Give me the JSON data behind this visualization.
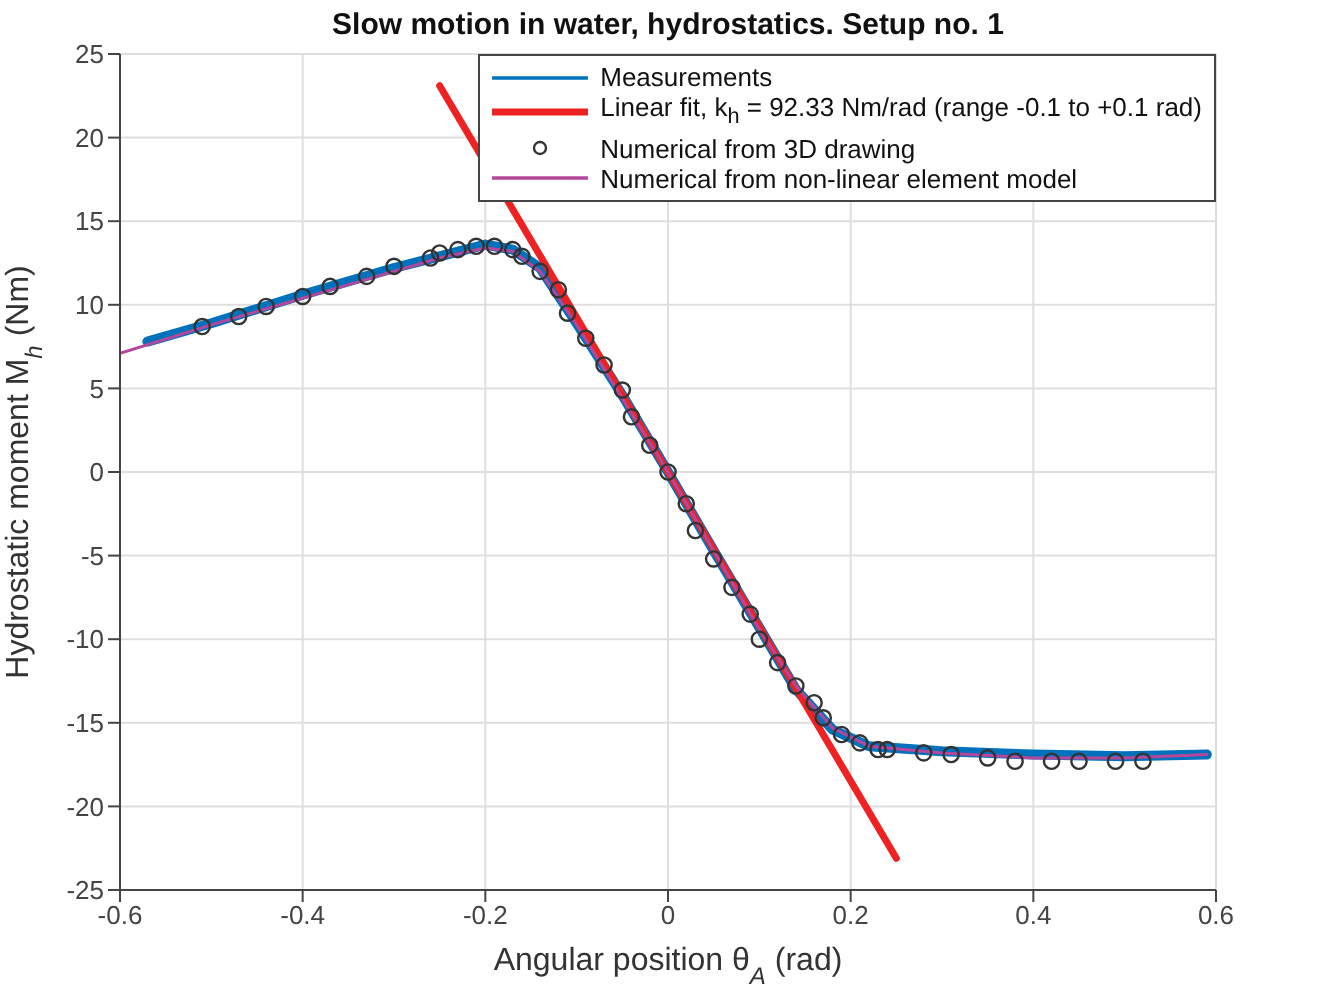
{
  "chart_data": {
    "type": "line",
    "title": "Slow motion in water, hydrostatics. Setup no. 1",
    "xlabel": "Angular position  θ$_{A}$  (rad)",
    "ylabel": "Hydrostatic moment  M$_{h}$  (Nm)",
    "xlim": [
      -0.6,
      0.6
    ],
    "xticks": [
      -0.6,
      -0.4,
      -0.2,
      0,
      0.2,
      0.4,
      0.6
    ],
    "ylim": [
      -25,
      25
    ],
    "yticks": [
      -25,
      -20,
      -15,
      -10,
      -5,
      0,
      5,
      10,
      15,
      20,
      25
    ],
    "grid": true,
    "legend": "top right",
    "series": [
      {
        "name": "Measurements",
        "type": "line",
        "marker": "none",
        "color": "#0072bd",
        "x": [
          -0.57,
          -0.5,
          -0.4,
          -0.3,
          -0.25,
          -0.2,
          -0.17,
          -0.14,
          -0.1,
          -0.05,
          0,
          0.05,
          0.1,
          0.14,
          0.18,
          0.22,
          0.3,
          0.4,
          0.5,
          0.59
        ],
        "values": [
          7.8,
          8.9,
          10.6,
          12.2,
          12.9,
          13.6,
          13.3,
          12.2,
          8.9,
          4.6,
          0,
          -4.7,
          -9.3,
          -13.0,
          -15.4,
          -16.4,
          -16.7,
          -16.9,
          -17.0,
          -16.9
        ]
      },
      {
        "name": "Linear fit, k$_{h}$ = 92.33 Nm/rad (range -0.1 to +0.1 rad)",
        "type": "line",
        "marker": "none",
        "color": "#ee2222",
        "x": [
          -0.25,
          0.25
        ],
        "values": [
          23.1,
          -23.1
        ]
      },
      {
        "name": "Numerical from 3D drawing",
        "type": "scatter",
        "marker": "circle",
        "color": "#333333",
        "x": [
          -0.51,
          -0.47,
          -0.44,
          -0.4,
          -0.37,
          -0.33,
          -0.3,
          -0.26,
          -0.25,
          -0.23,
          -0.21,
          -0.19,
          -0.17,
          -0.16,
          -0.14,
          -0.12,
          -0.11,
          -0.09,
          -0.07,
          -0.05,
          -0.04,
          -0.02,
          0,
          0.02,
          0.03,
          0.05,
          0.07,
          0.09,
          0.1,
          0.12,
          0.14,
          0.16,
          0.17,
          0.19,
          0.21,
          0.23,
          0.24,
          0.28,
          0.31,
          0.35,
          0.38,
          0.42,
          0.45,
          0.49,
          0.52
        ],
        "values": [
          8.7,
          9.3,
          9.9,
          10.5,
          11.1,
          11.7,
          12.3,
          12.8,
          13.1,
          13.3,
          13.5,
          13.5,
          13.3,
          12.9,
          12.0,
          10.9,
          9.5,
          8.0,
          6.4,
          4.9,
          3.3,
          1.6,
          0,
          -1.9,
          -3.5,
          -5.2,
          -6.9,
          -8.5,
          -10.0,
          -11.4,
          -12.8,
          -13.8,
          -14.7,
          -15.7,
          -16.2,
          -16.6,
          -16.6,
          -16.8,
          -16.9,
          -17.1,
          -17.3,
          -17.3,
          -17.3,
          -17.3,
          -17.3
        ]
      },
      {
        "name": "Numerical from non-linear element model",
        "type": "line",
        "marker": "none",
        "color": "#b5479b",
        "x": [
          -0.6,
          -0.5,
          -0.4,
          -0.3,
          -0.25,
          -0.2,
          -0.17,
          -0.14,
          -0.1,
          0,
          0.1,
          0.14,
          0.18,
          0.22,
          0.3,
          0.4,
          0.5,
          0.59
        ],
        "values": [
          7.1,
          8.8,
          10.4,
          12.0,
          12.8,
          13.4,
          13.2,
          12.0,
          8.8,
          0,
          -9.4,
          -12.8,
          -15.3,
          -16.4,
          -16.8,
          -17.1,
          -17.1,
          -16.9
        ]
      }
    ]
  }
}
